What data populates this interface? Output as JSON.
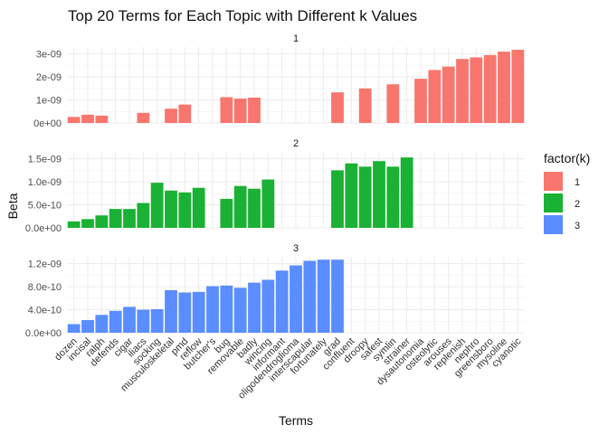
{
  "chart_data": {
    "type": "bar",
    "title": "Top 20 Terms for Each Topic with Different k Values",
    "xlabel": "Terms",
    "ylabel": "Beta",
    "legend": {
      "title": "factor(k)",
      "entries": [
        {
          "label": "1",
          "color": "#F8766D"
        },
        {
          "label": "2",
          "color": "#1BB134"
        },
        {
          "label": "3",
          "color": "#5A8DFF"
        }
      ],
      "position": "right"
    },
    "categories": [
      "dozen",
      "incisal",
      "ralph",
      "defends",
      "cigar",
      "iliacs",
      "socking",
      "musculoskeletal",
      "pmd",
      "reflow",
      "butcher's",
      "bug",
      "removable",
      "badly",
      "wincing",
      "informant",
      "oligodendroglioma",
      "interscapular",
      "fortunately",
      "grad",
      "confluent",
      "droopy",
      "safest",
      "symlin",
      "strainer",
      "dysautonomia",
      "osteolytic",
      "arouses",
      "replenish",
      "nephro",
      "greensboro",
      "mysoline",
      "cyanotic"
    ],
    "panels": [
      {
        "strip": "1",
        "ylim": [
          0,
          3.3e-09
        ],
        "yticks": [
          0,
          1e-09,
          2e-09,
          3e-09
        ],
        "ytick_labels": [
          "0e+00",
          "1e-09",
          "2e-09",
          "3e-09"
        ],
        "values": [
          2.6e-10,
          3.6e-10,
          3.2e-10,
          null,
          null,
          4.4e-10,
          null,
          6.2e-10,
          8e-10,
          null,
          null,
          1.12e-09,
          1.06e-09,
          1.1e-09,
          null,
          null,
          null,
          null,
          null,
          1.33e-09,
          null,
          1.5e-09,
          null,
          1.68e-09,
          null,
          1.92e-09,
          2.3e-09,
          2.45e-09,
          2.78e-09,
          2.85e-09,
          2.95e-09,
          3.1e-09,
          3.18e-09
        ]
      },
      {
        "strip": "2",
        "ylim": [
          0,
          1.65e-09
        ],
        "yticks": [
          0,
          5e-10,
          1e-09,
          1.5e-09
        ],
        "ytick_labels": [
          "0.0e+00",
          "5.0e-10",
          "1.0e-09",
          "1.5e-09"
        ],
        "values": [
          1.4e-10,
          1.9e-10,
          2.7e-10,
          4.1e-10,
          4.1e-10,
          5.4e-10,
          9.8e-10,
          8.1e-10,
          7.7e-10,
          8.7e-10,
          null,
          6.3e-10,
          9.1e-10,
          8.5e-10,
          1.05e-09,
          null,
          null,
          null,
          null,
          1.25e-09,
          1.4e-09,
          1.33e-09,
          1.45e-09,
          1.33e-09,
          1.53e-09,
          null,
          null,
          null,
          null,
          null,
          null,
          null,
          null
        ]
      },
      {
        "strip": "3",
        "ylim": [
          0,
          1.32e-09
        ],
        "yticks": [
          0,
          4e-10,
          8e-10,
          1.2e-09
        ],
        "ytick_labels": [
          "0.0e+00",
          "4.0e-10",
          "8.0e-10",
          "1.2e-09"
        ],
        "values": [
          1.5e-10,
          2.2e-10,
          3.1e-10,
          3.8e-10,
          4.5e-10,
          4e-10,
          4.1e-10,
          7.4e-10,
          7e-10,
          7.1e-10,
          8.1e-10,
          8.2e-10,
          7.8e-10,
          8.7e-10,
          9.2e-10,
          1.08e-09,
          1.17e-09,
          1.25e-09,
          1.27e-09,
          1.27e-09,
          null,
          null,
          null,
          null,
          null,
          null,
          null,
          null,
          null,
          null,
          null,
          null,
          null
        ]
      }
    ],
    "grid": true
  }
}
